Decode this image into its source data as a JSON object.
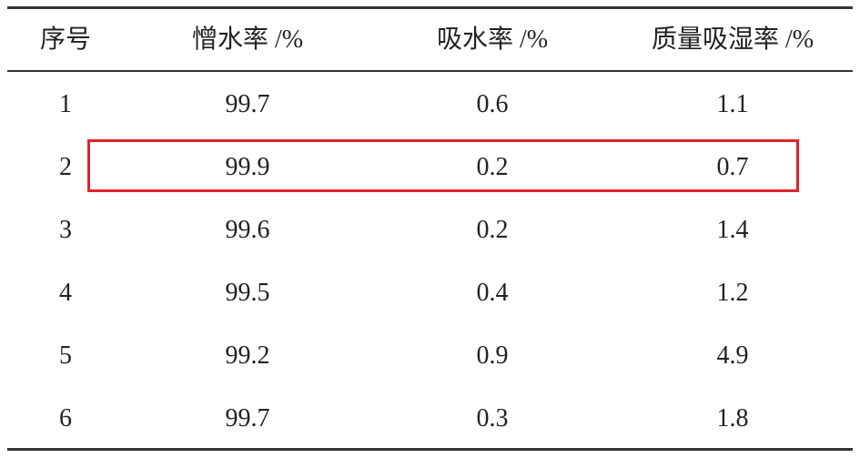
{
  "table": {
    "header": [
      "序号",
      "憎水率 /%",
      "吸水率 /%",
      "质量吸湿率 /%"
    ],
    "rows": [
      [
        "1",
        "99.7",
        "0.6",
        "1.1"
      ],
      [
        "2",
        "99.9",
        "0.2",
        "0.7"
      ],
      [
        "3",
        "99.6",
        "0.2",
        "1.4"
      ],
      [
        "4",
        "99.5",
        "0.4",
        "1.2"
      ],
      [
        "5",
        "99.2",
        "0.9",
        "4.9"
      ],
      [
        "6",
        "99.7",
        "0.3",
        "1.8"
      ]
    ]
  }
}
